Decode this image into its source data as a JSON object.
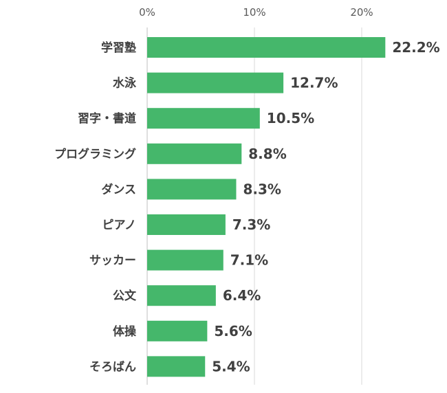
{
  "chart_data": {
    "type": "bar",
    "orientation": "horizontal",
    "categories": [
      "学習塾",
      "水泳",
      "習字・書道",
      "プログラミング",
      "ダンス",
      "ピアノ",
      "サッカー",
      "公文",
      "体操",
      "そろばん"
    ],
    "values": [
      22.2,
      12.7,
      10.5,
      8.8,
      8.3,
      7.3,
      7.1,
      6.4,
      5.6,
      5.4
    ],
    "value_labels": [
      "22.2%",
      "12.7%",
      "10.5%",
      "8.8%",
      "8.3%",
      "7.3%",
      "7.1%",
      "6.4%",
      "5.6%",
      "5.4%"
    ],
    "xlim": [
      0,
      25
    ],
    "x_ticks": [
      0,
      10,
      20
    ],
    "x_tick_labels": [
      "0%",
      "10%",
      "20%"
    ],
    "x_axis_position": "top",
    "grid": true,
    "bar_color": "#45b76b",
    "title": "",
    "xlabel": "",
    "ylabel": ""
  }
}
